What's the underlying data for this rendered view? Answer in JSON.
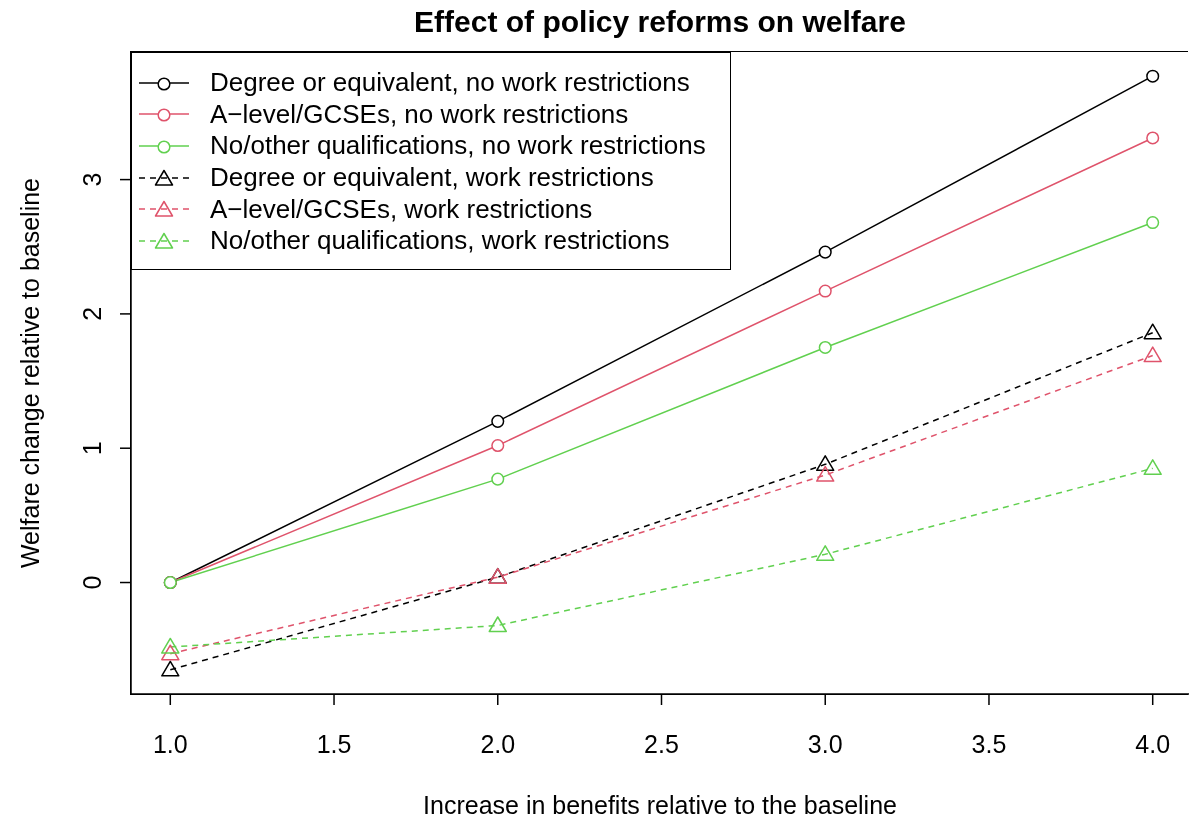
{
  "chart_data": {
    "type": "line",
    "title": "Effect of policy reforms on welfare",
    "xlabel": "Increase in benefits relative to the baseline",
    "ylabel": "Welfare change relative to baseline",
    "x": [
      1,
      2,
      3,
      4
    ],
    "series": [
      {
        "name": "Degree or equivalent, no work restrictions",
        "color": "#000000",
        "marker": "circle",
        "line_style": "solid",
        "values": [
          0,
          1.2,
          2.46,
          3.77
        ]
      },
      {
        "name": "A−level/GCSEs, no work restrictions",
        "color": "#df536b",
        "marker": "circle",
        "line_style": "solid",
        "values": [
          0,
          1.02,
          2.17,
          3.31
        ]
      },
      {
        "name": "No/other qualifications, no work restrictions",
        "color": "#61d04f",
        "marker": "circle",
        "line_style": "solid",
        "values": [
          0,
          0.77,
          1.75,
          2.68
        ]
      },
      {
        "name": "Degree or equivalent, work restrictions",
        "color": "#000000",
        "marker": "triangle",
        "line_style": "dashed",
        "values": [
          -0.65,
          0.04,
          0.88,
          1.86
        ]
      },
      {
        "name": "A−level/GCSEs, work restrictions",
        "color": "#df536b",
        "marker": "triangle",
        "line_style": "dashed",
        "values": [
          -0.53,
          0.04,
          0.8,
          1.69
        ]
      },
      {
        "name": "No/other qualifications, work restrictions",
        "color": "#61d04f",
        "marker": "triangle",
        "line_style": "dashed",
        "values": [
          -0.48,
          -0.32,
          0.21,
          0.85
        ]
      }
    ],
    "xlim": [
      0.88,
      4.12
    ],
    "xticks": [
      {
        "value": 1,
        "label": "1.0"
      },
      {
        "value": 1.5,
        "label": "1.5"
      },
      {
        "value": 2,
        "label": "2.0"
      },
      {
        "value": 2.5,
        "label": "2.5"
      },
      {
        "value": 3,
        "label": "3.0"
      },
      {
        "value": 3.5,
        "label": "3.5"
      },
      {
        "value": 4,
        "label": "4.0"
      }
    ],
    "ylim": [
      -0.83,
      3.95
    ],
    "yticks": [
      0,
      1,
      2,
      3
    ],
    "legend": "top left"
  }
}
